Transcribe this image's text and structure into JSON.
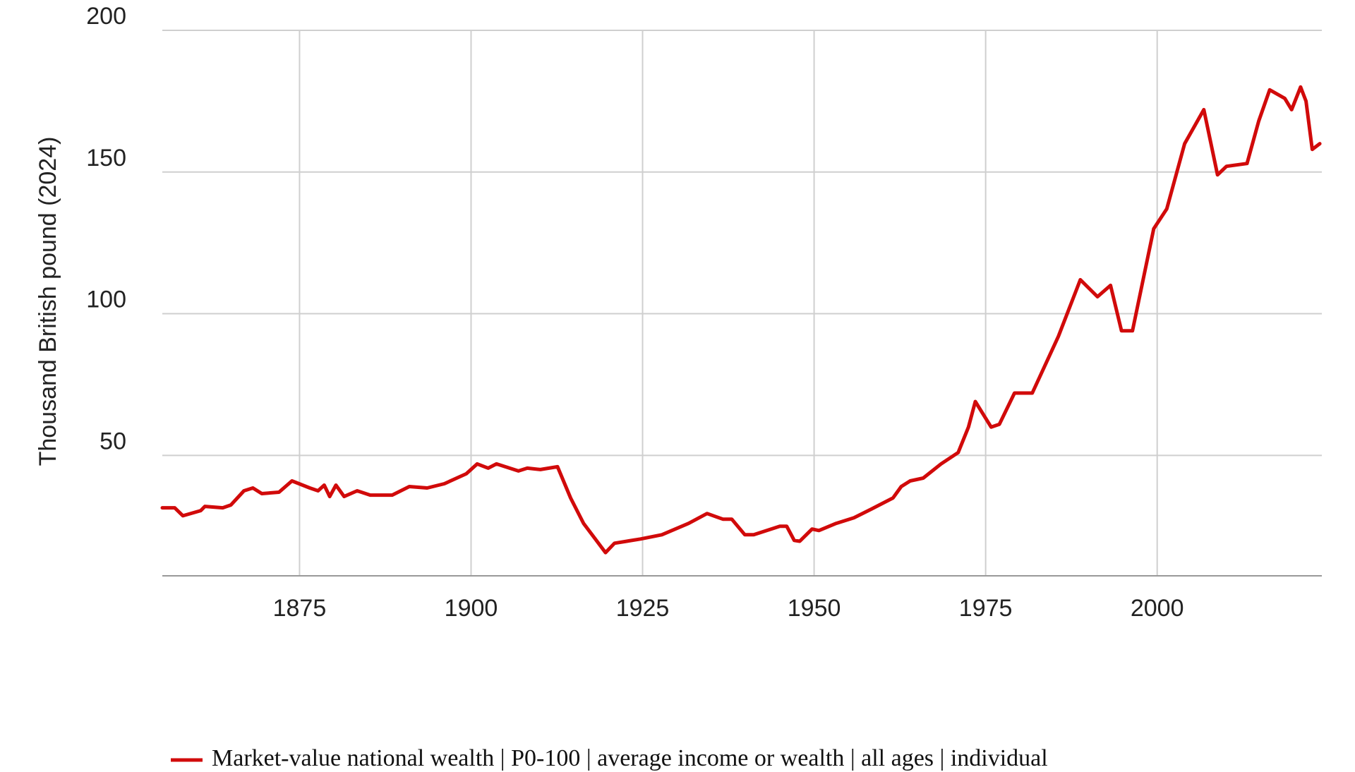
{
  "chart_data": {
    "type": "line",
    "y_label": "Thousand British pound (2024)",
    "x": [
      1855,
      1856.8,
      1858,
      1860.6,
      1861.2,
      1863.8,
      1865,
      1866.9,
      1868.2,
      1869.5,
      1872,
      1873.9,
      1876.5,
      1877.7,
      1878.6,
      1879.4,
      1880.3,
      1881.5,
      1883.4,
      1885.3,
      1888.5,
      1891,
      1893.6,
      1896.1,
      1899.3,
      1900.9,
      1902.5,
      1903.7,
      1906.9,
      1908.2,
      1910.1,
      1912.6,
      1914.5,
      1916.4,
      1919.6,
      1920.9,
      1924.7,
      1927.8,
      1931.7,
      1934.4,
      1936.7,
      1938,
      1939.9,
      1941.2,
      1945,
      1946,
      1947.1,
      1947.9,
      1949.7,
      1950.7,
      1953.2,
      1955.8,
      1958.3,
      1961.5,
      1962.7,
      1964,
      1965.9,
      1968.5,
      1971,
      1972.5,
      1973.5,
      1975.8,
      1977,
      1979.2,
      1981.8,
      1985.6,
      1988.8,
      1991.3,
      1993.2,
      1994.8,
      1996.4,
      1999.5,
      2001.4,
      2004,
      2006.8,
      2008.8,
      2010.1,
      2013.1,
      2014.8,
      2016.4,
      2018.6,
      2019.6,
      2020.9,
      2021.7,
      2022.6,
      2023.7
    ],
    "series": [
      {
        "name": "Market-value national wealth | P0-100 | average income or wealth | all ages | individual",
        "color": "#d10a0a",
        "values": [
          31.5,
          31.5,
          28.7,
          30.5,
          32,
          31.5,
          32.5,
          37.5,
          38.5,
          36.5,
          37,
          41,
          38.5,
          37.5,
          39.5,
          35.5,
          39.5,
          35.5,
          37.5,
          36,
          36,
          39,
          38.5,
          40,
          43.5,
          47,
          45.5,
          47,
          44.5,
          45.5,
          45,
          46,
          35,
          26,
          15.7,
          19,
          20.5,
          22,
          26,
          29.5,
          27.5,
          27.5,
          22,
          22,
          25,
          25,
          20,
          19.7,
          24,
          23.5,
          26,
          28,
          31,
          35,
          39,
          41,
          42,
          47,
          51,
          60,
          69,
          60,
          61,
          72,
          72,
          92,
          112,
          106,
          110,
          94,
          94,
          130,
          137,
          160,
          172,
          149,
          152,
          153,
          168,
          179,
          176,
          172,
          180,
          175,
          158,
          160
        ]
      }
    ],
    "xlim": [
      1855,
      2024
    ],
    "ylim": [
      7.5,
      200
    ],
    "xticks": [
      1875,
      1900,
      1925,
      1950,
      1975,
      2000
    ],
    "yticks": [
      50,
      100,
      150,
      200
    ],
    "grid": true
  }
}
